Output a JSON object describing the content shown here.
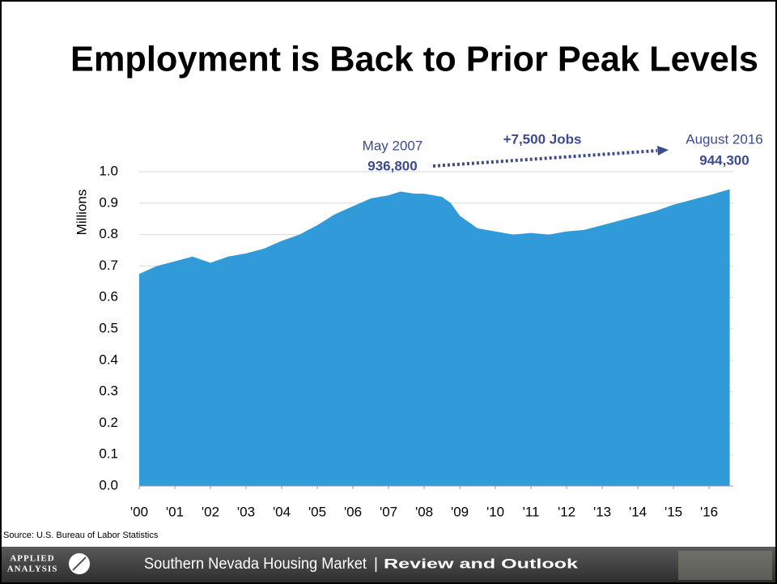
{
  "chart_data": {
    "type": "area",
    "title": "Employment is Back to Prior Peak Levels",
    "y_label": "Millions",
    "color": "#319ad8",
    "x": [
      2000.0,
      2000.5,
      2001.0,
      2001.5,
      2002.0,
      2002.5,
      2003.0,
      2003.5,
      2004.0,
      2004.5,
      2005.0,
      2005.5,
      2006.0,
      2006.5,
      2007.0,
      2007.33,
      2007.75,
      2008.0,
      2008.5,
      2008.75,
      2009.0,
      2009.5,
      2010.0,
      2010.5,
      2011.0,
      2011.5,
      2012.0,
      2012.5,
      2013.0,
      2013.5,
      2014.0,
      2014.5,
      2015.0,
      2015.5,
      2016.0,
      2016.58
    ],
    "values": [
      0.675,
      0.7,
      0.715,
      0.73,
      0.71,
      0.73,
      0.74,
      0.755,
      0.78,
      0.8,
      0.83,
      0.865,
      0.89,
      0.915,
      0.925,
      0.9368,
      0.93,
      0.93,
      0.92,
      0.9,
      0.86,
      0.82,
      0.81,
      0.8,
      0.805,
      0.8,
      0.81,
      0.815,
      0.83,
      0.845,
      0.86,
      0.875,
      0.895,
      0.91,
      0.925,
      0.9443
    ],
    "xlim": [
      2000,
      2016.68
    ],
    "xticks": [
      {
        "value": 2000,
        "label": "'00"
      },
      {
        "value": 2001,
        "label": "'01"
      },
      {
        "value": 2002,
        "label": "'02"
      },
      {
        "value": 2003,
        "label": "'03"
      },
      {
        "value": 2004,
        "label": "'04"
      },
      {
        "value": 2005,
        "label": "'05"
      },
      {
        "value": 2006,
        "label": "'06"
      },
      {
        "value": 2007,
        "label": "'07"
      },
      {
        "value": 2008,
        "label": "'08"
      },
      {
        "value": 2009,
        "label": "'09"
      },
      {
        "value": 2010,
        "label": "'10"
      },
      {
        "value": 2011,
        "label": "'11"
      },
      {
        "value": 2012,
        "label": "'12"
      },
      {
        "value": 2013,
        "label": "'13"
      },
      {
        "value": 2014,
        "label": "'14"
      },
      {
        "value": 2015,
        "label": "'15"
      },
      {
        "value": 2016,
        "label": "'16"
      }
    ],
    "ylim": [
      0,
      1
    ],
    "yticks": [
      {
        "value": 0,
        "label": "0.0"
      },
      0.1,
      0.2,
      0.3,
      0.4,
      0.5,
      0.6,
      0.7,
      0.8,
      0.9,
      {
        "value": 1,
        "label": "1.0"
      }
    ],
    "grid": true,
    "annotations": {
      "start_date": "May 2007",
      "start_value": "936,800",
      "change": "+7,500 Jobs",
      "end_date": "August 2016",
      "end_value": "944,300"
    },
    "source": "Source: U.S. Bureau of Labor Statistics"
  },
  "footer": {
    "logo_top": "APPLIED",
    "logo_bottom": "ANALYSIS",
    "title": "Southern Nevada Housing Market",
    "separator": "|",
    "subtitle": "Review and Outlook"
  }
}
